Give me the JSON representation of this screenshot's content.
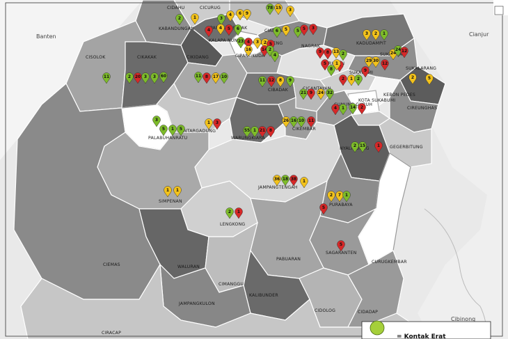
{
  "map": {
    "outside_labels": {
      "banten": "Banten",
      "cianjur": "Cianjur",
      "cibinong": "Cibinong",
      "ciracap": "CIRACAP"
    },
    "legend": {
      "label": "= Kontak Erat",
      "color": "#a5cf3a"
    },
    "colors": {
      "green": "#7dbb2a",
      "yellow": "#f2c21c",
      "red": "#d62828",
      "light_green": "#a5cf3a"
    },
    "districts": [
      {
        "name": "CIDAHU"
      },
      {
        "name": "CICURUG"
      },
      {
        "name": "KABANDUNGAN"
      },
      {
        "name": "PARAKAN SALAK"
      },
      {
        "name": "KALAPA NUNGGAL"
      },
      {
        "name": "CIAMBAR"
      },
      {
        "name": "BOJONG GENTENG"
      },
      {
        "name": "CIPANGKUDA"
      },
      {
        "name": "KADUDAMPIT"
      },
      {
        "name": "NAGRAK"
      },
      {
        "name": "CARINGIN"
      },
      {
        "name": "SUKARAJA"
      },
      {
        "name": "SUKABUMI"
      },
      {
        "name": "SUKALARANG"
      },
      {
        "name": "CISOLOK"
      },
      {
        "name": "CIKAKAK"
      },
      {
        "name": "CIKIDANG"
      },
      {
        "name": "CIBADAK"
      },
      {
        "name": "CICANTAYAN"
      },
      {
        "name": "KOTA SUKABUMI"
      },
      {
        "name": "GUNUNG GURUH"
      },
      {
        "name": "KEBON PEDES"
      },
      {
        "name": "CIREUNGHAS"
      },
      {
        "name": "BANTARGADUNG"
      },
      {
        "name": "WARUNGKIARA"
      },
      {
        "name": "CIKEMBAR"
      },
      {
        "name": "PALABUHANRATU"
      },
      {
        "name": "GEGERBITUNG"
      },
      {
        "name": "NYALINDUNG"
      },
      {
        "name": "JAMPANGTENGAH"
      },
      {
        "name": "SIMPENAN"
      },
      {
        "name": "PURABAYA"
      },
      {
        "name": "LENGKONG"
      },
      {
        "name": "SAGARANTEN"
      },
      {
        "name": "CURUGKEMBAR"
      },
      {
        "name": "CIEMAS"
      },
      {
        "name": "WALURAN"
      },
      {
        "name": "PABUARAN"
      },
      {
        "name": "CIMANGGU"
      },
      {
        "name": "KALIBUNDER"
      },
      {
        "name": "JAMPANGKULON"
      },
      {
        "name": "CIDOLOG"
      },
      {
        "name": "CIDADAP"
      }
    ],
    "markers": [
      {
        "v": "2",
        "c": "green"
      },
      {
        "v": "1",
        "c": "yellow"
      },
      {
        "v": "3",
        "c": "green"
      },
      {
        "v": "4",
        "c": "yellow"
      },
      {
        "v": "6",
        "c": "yellow"
      },
      {
        "v": "9",
        "c": "yellow"
      },
      {
        "v": "78",
        "c": "green"
      },
      {
        "v": "15",
        "c": "yellow"
      },
      {
        "v": "3",
        "c": "yellow"
      },
      {
        "v": "4",
        "c": "red"
      },
      {
        "v": "4",
        "c": "yellow"
      },
      {
        "v": "5",
        "c": "red"
      },
      {
        "v": "6",
        "c": "green"
      },
      {
        "v": "6",
        "c": "green"
      },
      {
        "v": "5",
        "c": "yellow"
      },
      {
        "v": "5",
        "c": "green"
      },
      {
        "v": "5",
        "c": "red"
      },
      {
        "v": "3",
        "c": "red"
      },
      {
        "v": "9",
        "c": "red"
      },
      {
        "v": "8",
        "c": "red"
      },
      {
        "v": "13",
        "c": "yellow"
      },
      {
        "v": "4",
        "c": "red"
      },
      {
        "v": "3",
        "c": "yellow"
      },
      {
        "v": "2",
        "c": "yellow"
      },
      {
        "v": "5",
        "c": "red"
      },
      {
        "v": "23",
        "c": "green"
      },
      {
        "v": "16",
        "c": "yellow"
      },
      {
        "v": "14",
        "c": "red"
      },
      {
        "v": "2",
        "c": "green"
      },
      {
        "v": "4",
        "c": "green"
      },
      {
        "v": "3",
        "c": "yellow"
      },
      {
        "v": "2",
        "c": "yellow"
      },
      {
        "v": "1",
        "c": "green"
      },
      {
        "v": "9",
        "c": "red"
      },
      {
        "v": "29",
        "c": "yellow"
      },
      {
        "v": "30",
        "c": "yellow"
      },
      {
        "v": "12",
        "c": "red"
      },
      {
        "v": "24",
        "c": "yellow"
      },
      {
        "v": "24",
        "c": "green"
      },
      {
        "v": "12",
        "c": "red"
      },
      {
        "v": "2",
        "c": "yellow"
      },
      {
        "v": "5",
        "c": "yellow"
      },
      {
        "v": "8",
        "c": "green"
      },
      {
        "v": "1",
        "c": "red"
      },
      {
        "v": "2",
        "c": "green"
      },
      {
        "v": "5",
        "c": "red"
      },
      {
        "v": "1",
        "c": "yellow"
      },
      {
        "v": "11",
        "c": "green"
      },
      {
        "v": "2",
        "c": "green"
      },
      {
        "v": "20",
        "c": "red"
      },
      {
        "v": "3",
        "c": "green"
      },
      {
        "v": "3",
        "c": "green"
      },
      {
        "v": "60",
        "c": "green"
      },
      {
        "v": "11",
        "c": "green"
      },
      {
        "v": "8",
        "c": "red"
      },
      {
        "v": "17",
        "c": "yellow"
      },
      {
        "v": "10",
        "c": "green"
      },
      {
        "v": "11",
        "c": "green"
      },
      {
        "v": "12",
        "c": "red"
      },
      {
        "v": "8",
        "c": "yellow"
      },
      {
        "v": "9",
        "c": "green"
      },
      {
        "v": "21",
        "c": "green"
      },
      {
        "v": "9",
        "c": "red"
      },
      {
        "v": "24",
        "c": "yellow"
      },
      {
        "v": "32",
        "c": "green"
      },
      {
        "v": "2",
        "c": "red"
      },
      {
        "v": "1",
        "c": "yellow"
      },
      {
        "v": "2",
        "c": "green"
      },
      {
        "v": "4",
        "c": "red"
      },
      {
        "v": "1",
        "c": "green"
      },
      {
        "v": "14",
        "c": "green"
      },
      {
        "v": "2",
        "c": "red"
      },
      {
        "v": "3",
        "c": "green"
      },
      {
        "v": "5",
        "c": "green"
      },
      {
        "v": "1",
        "c": "green"
      },
      {
        "v": "5",
        "c": "green"
      },
      {
        "v": "1",
        "c": "yellow"
      },
      {
        "v": "3",
        "c": "red"
      },
      {
        "v": "55",
        "c": "green"
      },
      {
        "v": "1",
        "c": "green"
      },
      {
        "v": "21",
        "c": "red"
      },
      {
        "v": "8",
        "c": "red"
      },
      {
        "v": "26",
        "c": "yellow"
      },
      {
        "v": "16",
        "c": "green"
      },
      {
        "v": "10",
        "c": "green"
      },
      {
        "v": "11",
        "c": "red"
      },
      {
        "v": "2",
        "c": "green"
      },
      {
        "v": "15",
        "c": "green"
      },
      {
        "v": "1",
        "c": "red"
      },
      {
        "v": "36",
        "c": "yellow"
      },
      {
        "v": "18",
        "c": "green"
      },
      {
        "v": "38",
        "c": "red"
      },
      {
        "v": "1",
        "c": "yellow"
      },
      {
        "v": "1",
        "c": "yellow"
      },
      {
        "v": "1",
        "c": "yellow"
      },
      {
        "v": "2",
        "c": "yellow"
      },
      {
        "v": "7",
        "c": "yellow"
      },
      {
        "v": "1",
        "c": "green"
      },
      {
        "v": "5",
        "c": "red"
      },
      {
        "v": "2",
        "c": "green"
      },
      {
        "v": "1",
        "c": "red"
      },
      {
        "v": "5",
        "c": "red"
      }
    ]
  }
}
